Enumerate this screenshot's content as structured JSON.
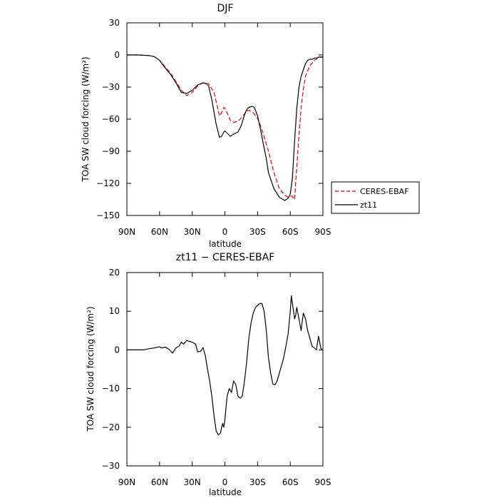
{
  "chart_data": [
    {
      "type": "line",
      "title": "DJF",
      "xlabel": "latitude",
      "ylabel": "TOA SW cloud forcing (W/m²)",
      "x_ticks": [
        -90,
        -60,
        -30,
        0,
        30,
        60,
        90
      ],
      "x_tick_labels": [
        "90N",
        "60N",
        "30N",
        "0",
        "30S",
        "60S",
        "90S"
      ],
      "xlim": [
        -90,
        90
      ],
      "ylim": [
        -150,
        30
      ],
      "y_ticks": [
        30,
        0,
        -30,
        -60,
        -90,
        -120,
        -150
      ],
      "y_tick_labels": [
        "30",
        "0",
        "−30",
        "−60",
        "−90",
        "−120",
        "−150"
      ],
      "legend_position": "outside-right",
      "series": [
        {
          "name": "CERES-EBAF",
          "color": "#dd0000",
          "dash": "dashed",
          "x": [
            -90,
            -80,
            -70,
            -65,
            -60,
            -55,
            -50,
            -45,
            -40,
            -35,
            -30,
            -25,
            -20,
            -15,
            -10,
            -7,
            -5,
            -3,
            -1,
            0,
            2,
            5,
            8,
            12,
            15,
            18,
            20,
            23,
            26,
            30,
            33,
            35,
            40,
            45,
            50,
            55,
            58,
            60,
            62,
            64,
            66,
            68,
            70,
            72,
            74,
            76,
            78,
            80,
            82,
            84,
            86,
            88,
            90
          ],
          "values": [
            0,
            0,
            -0.5,
            -1.5,
            -5,
            -11,
            -17,
            -25,
            -33,
            -38,
            -35,
            -29,
            -26,
            -27,
            -35,
            -48,
            -57,
            -54,
            -49,
            -50,
            -54,
            -61,
            -63,
            -62,
            -59,
            -55,
            -52,
            -52,
            -54,
            -59,
            -67,
            -73,
            -90,
            -110,
            -125,
            -131,
            -133,
            -132,
            -132,
            -135,
            -105,
            -75,
            -50,
            -32,
            -20,
            -15,
            -10,
            -8,
            -5,
            -4,
            -3,
            -2,
            -2
          ]
        },
        {
          "name": "zt11",
          "color": "#000000",
          "dash": "solid",
          "x": [
            -90,
            -80,
            -70,
            -65,
            -60,
            -55,
            -50,
            -45,
            -40,
            -35,
            -30,
            -25,
            -20,
            -17,
            -15,
            -12,
            -8,
            -5,
            -3,
            -1,
            0,
            2,
            5,
            8,
            12,
            15,
            18,
            20,
            22,
            25,
            27,
            30,
            33,
            35,
            38,
            40,
            45,
            50,
            55,
            58,
            60,
            62,
            64,
            66,
            68,
            70,
            72,
            74,
            76,
            78,
            80,
            82,
            84,
            86,
            88,
            90
          ],
          "values": [
            0,
            0,
            -0.5,
            -1.5,
            -5,
            -12,
            -18,
            -26,
            -35,
            -36,
            -33,
            -28,
            -26,
            -27,
            -29,
            -42,
            -65,
            -77,
            -76,
            -72,
            -71,
            -73,
            -76,
            -74,
            -72,
            -66,
            -56,
            -51,
            -49,
            -48,
            -49,
            -57,
            -71,
            -82,
            -97,
            -110,
            -125,
            -133,
            -136,
            -134,
            -130,
            -115,
            -80,
            -50,
            -30,
            -20,
            -14,
            -8,
            -5,
            -4,
            -4,
            -3,
            -3,
            -2,
            -2,
            -2
          ]
        }
      ]
    },
    {
      "type": "line",
      "title": "zt11 − CERES-EBAF",
      "xlabel": "latitude",
      "ylabel": "TOA SW cloud forcing (W/m²)",
      "x_ticks": [
        -90,
        -60,
        -30,
        0,
        30,
        60,
        90
      ],
      "x_tick_labels": [
        "90N",
        "60N",
        "30N",
        "0",
        "30S",
        "60S",
        "90S"
      ],
      "xlim": [
        -90,
        90
      ],
      "ylim": [
        -30,
        20
      ],
      "y_ticks": [
        20,
        10,
        0,
        -10,
        -20,
        -30
      ],
      "y_tick_labels": [
        "20",
        "10",
        "0",
        "−10",
        "−20",
        "−30"
      ],
      "series": [
        {
          "name": "",
          "color": "#000000",
          "dash": "solid",
          "x": [
            -90,
            -80,
            -75,
            -70,
            -65,
            -60,
            -58,
            -55,
            -52,
            -50,
            -48,
            -45,
            -42,
            -40,
            -38,
            -35,
            -33,
            -30,
            -27,
            -25,
            -22,
            -20,
            -18,
            -16,
            -14,
            -12,
            -10,
            -8,
            -6,
            -4,
            -3,
            -2,
            -1,
            0,
            1,
            2,
            4,
            6,
            8,
            10,
            12,
            14,
            16,
            18,
            20,
            22,
            24,
            26,
            28,
            30,
            32,
            34,
            36,
            38,
            40,
            42,
            44,
            46,
            48,
            50,
            52,
            54,
            56,
            58,
            60,
            61,
            62,
            63,
            64,
            65,
            66,
            68,
            70,
            72,
            74,
            76,
            78,
            80,
            82,
            84,
            86,
            88,
            89,
            90
          ],
          "values": [
            0,
            0,
            0,
            0.3,
            0.5,
            0.8,
            0.5,
            0.7,
            0.3,
            -0.3,
            -0.8,
            0.5,
            1.0,
            2.0,
            1.5,
            2.5,
            2.2,
            2.0,
            1.5,
            -0.5,
            -0.3,
            0.6,
            -1.5,
            -5,
            -8,
            -12,
            -17,
            -21,
            -22,
            -21.5,
            -20,
            -19,
            -20,
            -18,
            -15,
            -12,
            -10,
            -11,
            -8,
            -9,
            -12,
            -12.5,
            -12,
            -8,
            -3,
            3,
            7,
            9.5,
            11,
            11.5,
            12,
            12,
            10,
            5,
            -2,
            -6,
            -8.8,
            -9,
            -8,
            -6,
            -4,
            -2,
            1,
            4,
            10,
            14,
            12,
            10,
            8,
            9,
            11,
            8,
            5,
            9.5,
            8,
            5,
            3,
            1,
            0.5,
            0,
            3.5,
            0.5,
            0,
            0
          ]
        }
      ]
    }
  ]
}
